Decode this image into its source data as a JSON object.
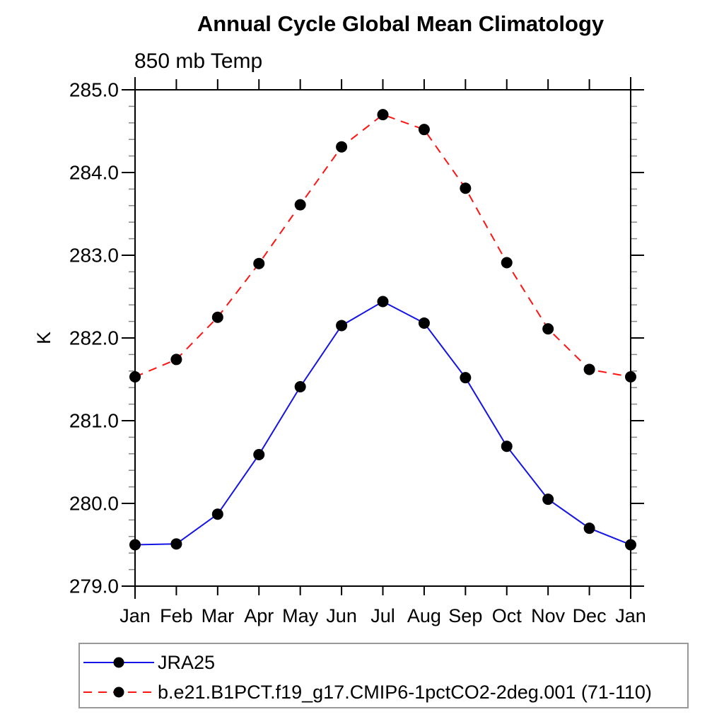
{
  "chart_data": {
    "type": "line",
    "title": "Annual Cycle Global Mean Climatology",
    "subtitle": "850 mb Temp",
    "ylabel": "K",
    "xlabel": "",
    "x_categories": [
      "Jan",
      "Feb",
      "Mar",
      "Apr",
      "May",
      "Jun",
      "Jul",
      "Aug",
      "Sep",
      "Oct",
      "Nov",
      "Dec",
      "Jan"
    ],
    "ylim": [
      279.0,
      285.0
    ],
    "y_major_step": 1.0,
    "y_minor_step": 0.2,
    "y_tick_label_decimals": 1,
    "grid": false,
    "legend_position": "bottom-left",
    "axis_color": "#000000",
    "marker_shape": "filled-circle",
    "series": [
      {
        "name": "JRA25",
        "line_color": "#1414e6",
        "line_style": "solid",
        "marker_color": "#000000",
        "values": [
          279.5,
          279.51,
          279.87,
          280.59,
          281.41,
          282.15,
          282.44,
          282.18,
          281.52,
          280.69,
          280.05,
          279.7,
          279.5
        ]
      },
      {
        "name": "b.e21.B1PCT.f19_g17.CMIP6-1pctCO2-2deg.001 (71-110)",
        "line_color": "#ff1414",
        "line_style": "dashed",
        "marker_color": "#000000",
        "values": [
          281.53,
          281.74,
          282.25,
          282.9,
          283.61,
          284.31,
          284.7,
          284.52,
          283.81,
          282.91,
          282.11,
          281.62,
          281.53
        ]
      }
    ]
  }
}
